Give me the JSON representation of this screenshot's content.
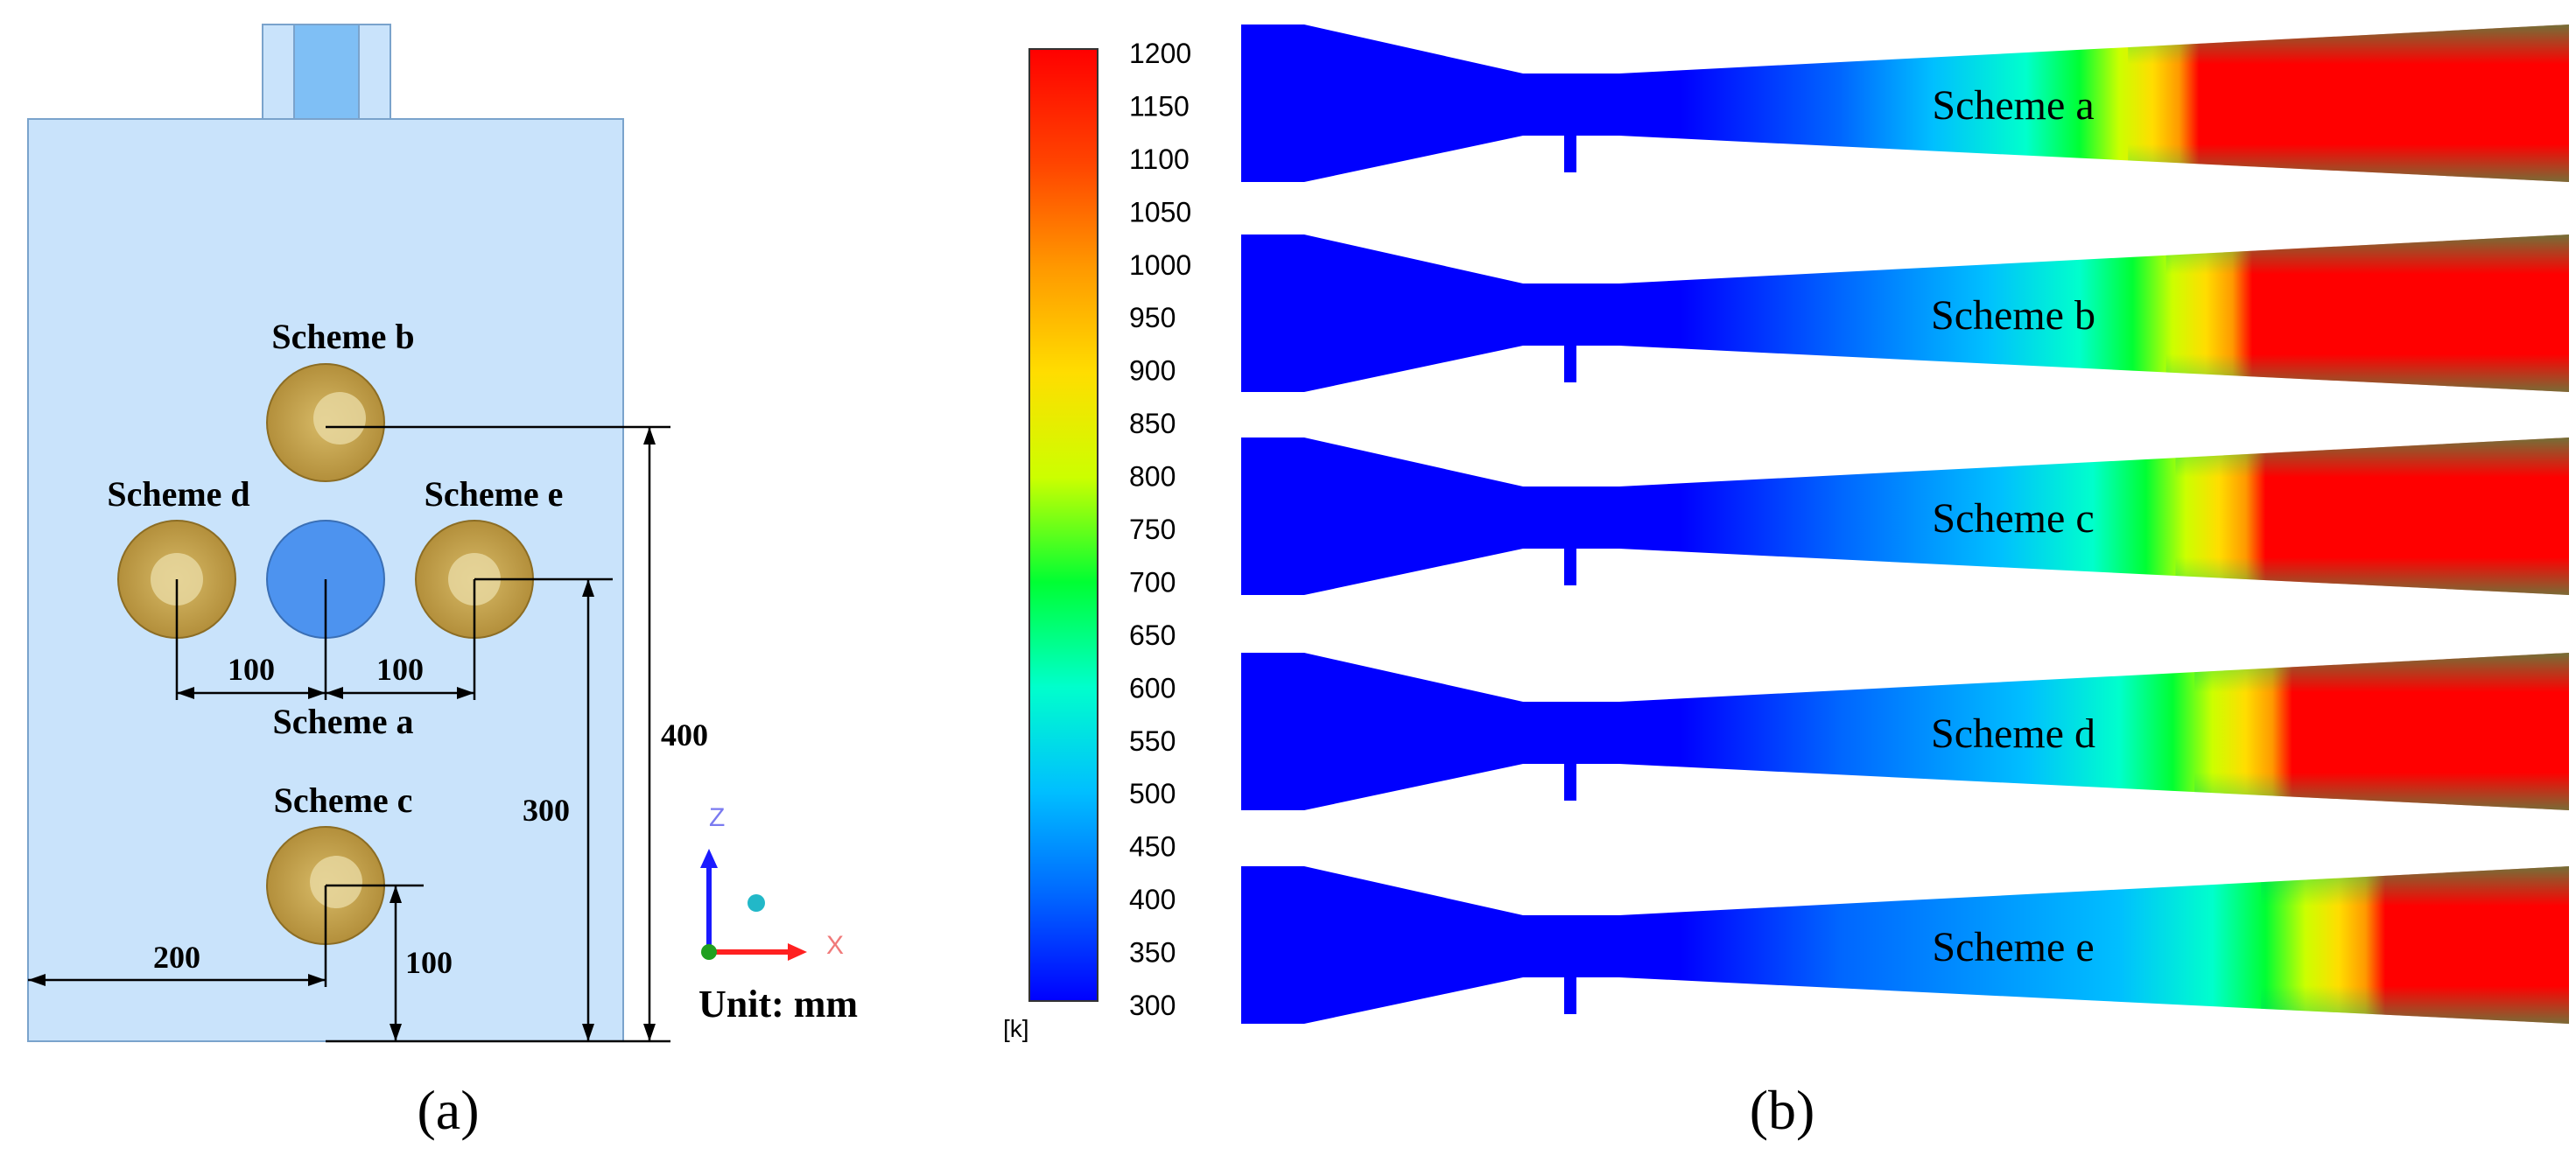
{
  "panel_a": {
    "label": "(a)",
    "scheme_labels": {
      "a": "Scheme a",
      "b": "Scheme b",
      "c": "Scheme c",
      "d": "Scheme d",
      "e": "Scheme e"
    },
    "dimensions": {
      "d_left": "100",
      "d_right": "100",
      "d_200": "200",
      "d_100_vert": "100",
      "d_300": "300",
      "d_400": "400"
    },
    "axes": {
      "z": "Z",
      "x": "X"
    },
    "unit": "Unit: mm",
    "colors": {
      "body_fill": "#c9e3fb",
      "body_stroke": "#7aa3cc",
      "outlet_fill": "#7fbff5",
      "nozzle_fill": "#c4a24f",
      "nozzle_center": "#e8d9a3",
      "center_circle": "#4d93ef"
    }
  },
  "panel_b": {
    "label": "(b)",
    "colorbar": {
      "unit": "[k]",
      "ticks": [
        "1200",
        "1150",
        "1100",
        "1050",
        "1000",
        "950",
        "900",
        "850",
        "800",
        "750",
        "700",
        "650",
        "600",
        "550",
        "500",
        "450",
        "400",
        "350",
        "300"
      ],
      "range": [
        300,
        1200
      ],
      "colors": [
        "#0000ff",
        "#0066ff",
        "#00bfff",
        "#00ffcc",
        "#00ff33",
        "#ccff00",
        "#ffdd00",
        "#ff9900",
        "#ff4400",
        "#ff0000"
      ]
    },
    "contours": [
      {
        "label": "Scheme a",
        "hot_start": 0.72
      },
      {
        "label": "Scheme b",
        "hot_start": 0.76
      },
      {
        "label": "Scheme c",
        "hot_start": 0.77
      },
      {
        "label": "Scheme d",
        "hot_start": 0.79
      },
      {
        "label": "Scheme e",
        "hot_start": 0.86
      }
    ]
  }
}
